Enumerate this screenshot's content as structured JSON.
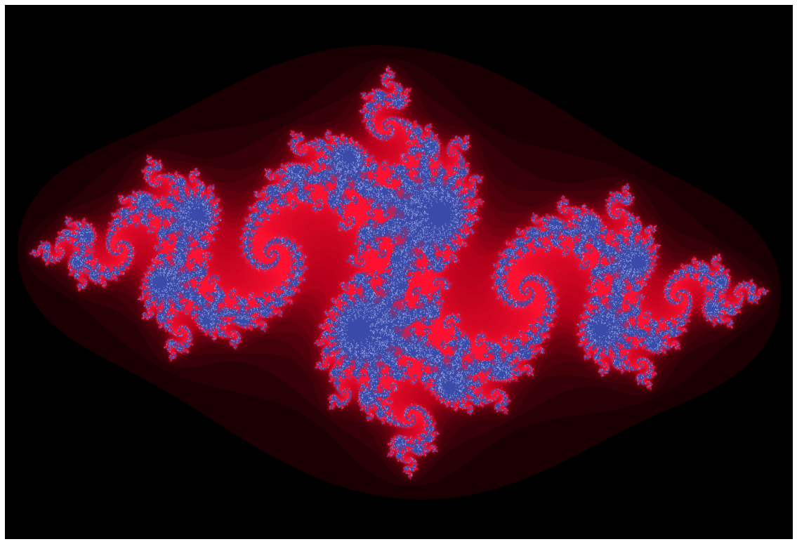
{
  "image": {
    "subject": "julia-set-fractal",
    "julia_constant": {
      "re": -0.8,
      "im": 0.156
    },
    "view": {
      "center_re": 0.0,
      "center_im": 0.0,
      "span_re": 3.25
    },
    "max_iterations": 220,
    "colors": {
      "background": "#000000",
      "outer_glow": "#1a0003",
      "red_mid": "#b0001a",
      "red_bright": "#ff1030",
      "fringe_blue": "#3a4aa8",
      "fringe_light": "#9aa6e6"
    }
  }
}
